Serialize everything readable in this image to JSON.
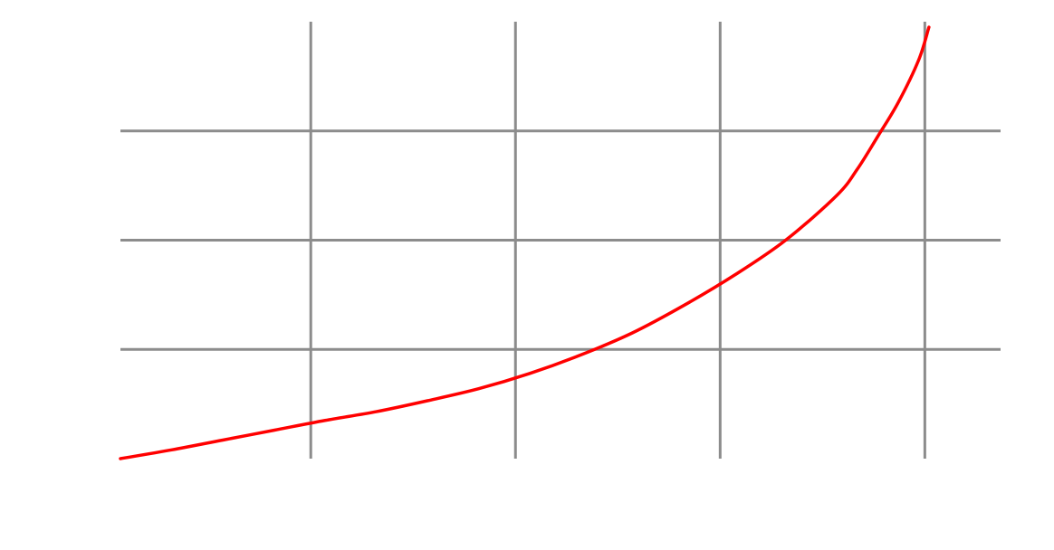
{
  "colors": {
    "background": "#ffffff",
    "grid": "#8c8c8c",
    "curve": "#ff0000"
  },
  "chart_data": {
    "type": "line",
    "title": "",
    "xlabel": "",
    "ylabel": "",
    "grid": true,
    "legend": "none",
    "xlim": [
      0,
      4.3
    ],
    "ylim": [
      0,
      4
    ],
    "x_gridlines": [
      0.93,
      1.93,
      2.93,
      3.93
    ],
    "y_gridlines": [
      1.0,
      2.0,
      3.0
    ],
    "series": [
      {
        "color": "#ff0000",
        "x": [
          0,
          0.25,
          0.5,
          0.75,
          1.0,
          1.25,
          1.5,
          1.75,
          2.0,
          2.25,
          2.5,
          2.75,
          3.0,
          3.25,
          3.5,
          3.6,
          3.7,
          3.8,
          3.9,
          3.95
        ],
        "y": [
          0.0,
          0.08,
          0.17,
          0.26,
          0.35,
          0.43,
          0.53,
          0.64,
          0.78,
          0.95,
          1.15,
          1.4,
          1.68,
          2.0,
          2.41,
          2.65,
          2.95,
          3.26,
          3.65,
          3.95
        ]
      }
    ]
  }
}
